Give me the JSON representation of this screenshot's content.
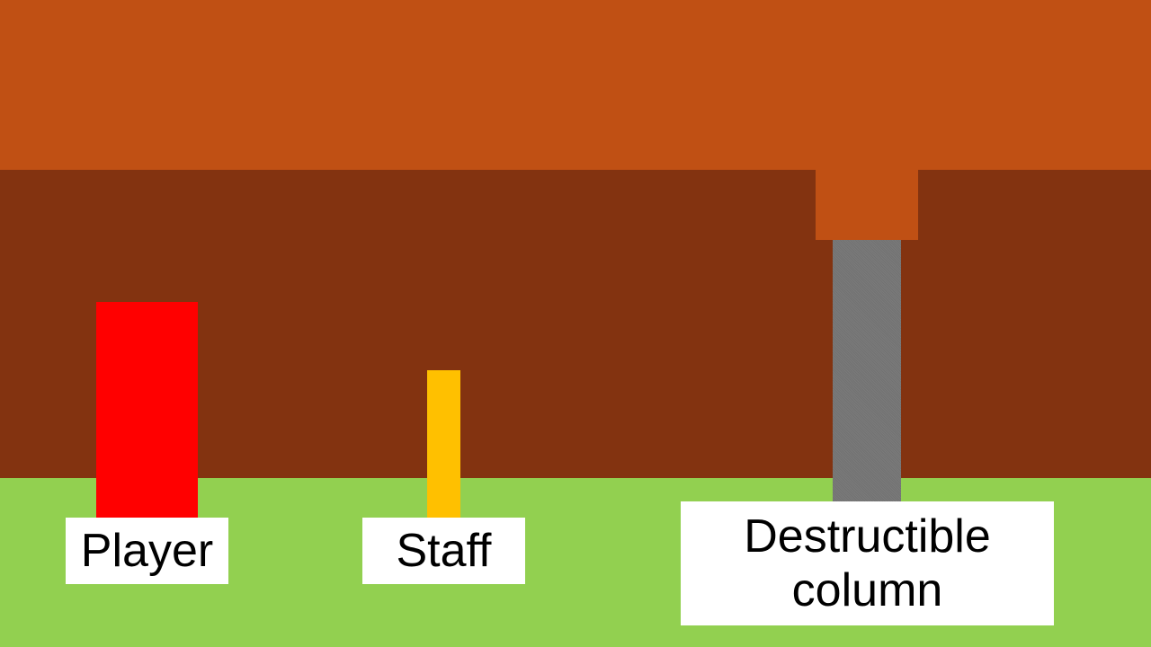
{
  "scene": {
    "colors": {
      "ceiling": "#c05014",
      "wall": "#833310",
      "ground": "#92d050",
      "player": "#ff0000",
      "staff": "#ffc000",
      "column": "#767676",
      "label_bg": "#ffffff",
      "label_text": "#000000"
    },
    "labels": {
      "player": "Player",
      "staff": "Staff",
      "column_line1": "Destructible",
      "column_line2": "column"
    }
  }
}
